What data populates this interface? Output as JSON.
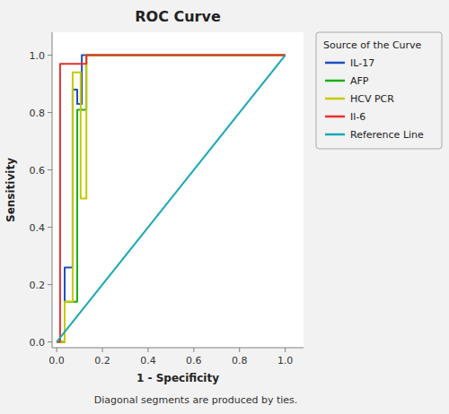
{
  "chart_data": {
    "type": "line",
    "title": "ROC Curve",
    "xlabel": "1 - Specificity",
    "ylabel": "Sensitivity",
    "annotation": "Diagonal segments are produced by ties.",
    "legend_title": "Source of the Curve",
    "legend": "right",
    "grid": false,
    "xlim": [
      -0.02,
      1.08
    ],
    "ylim": [
      -0.02,
      1.08
    ],
    "xticks": [
      {
        "value": 0.0,
        "label": "0.0"
      },
      0.2,
      0.4,
      0.6,
      0.8,
      {
        "value": 1.0,
        "label": "1.0"
      }
    ],
    "yticks": [
      {
        "value": 0.0,
        "label": "0.0"
      },
      0.2,
      0.4,
      0.6,
      0.8,
      {
        "value": 1.0,
        "label": "1.0"
      }
    ],
    "series": [
      {
        "name": "IL-17",
        "color": "#1F4FBF",
        "x": [
          0.0,
          0.035,
          0.035,
          0.07,
          0.07,
          0.09,
          0.09,
          0.11,
          0.11,
          1.0
        ],
        "values": [
          0.0,
          0.0,
          0.26,
          0.26,
          0.88,
          0.88,
          0.83,
          0.83,
          1.0,
          1.0
        ]
      },
      {
        "name": "AFP",
        "color": "#1AAF1A",
        "x": [
          0.0,
          0.035,
          0.035,
          0.09,
          0.09,
          0.13,
          0.13,
          1.0
        ],
        "values": [
          0.0,
          0.0,
          0.14,
          0.14,
          0.81,
          0.81,
          1.0,
          1.0
        ]
      },
      {
        "name": "HCV PCR",
        "color": "#C8C800",
        "x": [
          0.0,
          0.035,
          0.035,
          0.07,
          0.07,
          0.105,
          0.105,
          0.13,
          0.13,
          1.0
        ],
        "values": [
          0.0,
          0.0,
          0.14,
          0.14,
          0.94,
          0.94,
          0.5,
          0.5,
          1.0,
          1.0
        ]
      },
      {
        "name": "Il-6",
        "color": "#E83030",
        "x": [
          0.0,
          0.015,
          0.015,
          0.13,
          0.13,
          1.0
        ],
        "values": [
          0.0,
          0.0,
          0.97,
          0.97,
          1.0,
          1.0
        ]
      },
      {
        "name": "Reference Line",
        "color": "#18A8B8",
        "x": [
          0.0,
          1.0
        ],
        "values": [
          0.0,
          1.0
        ]
      }
    ]
  }
}
